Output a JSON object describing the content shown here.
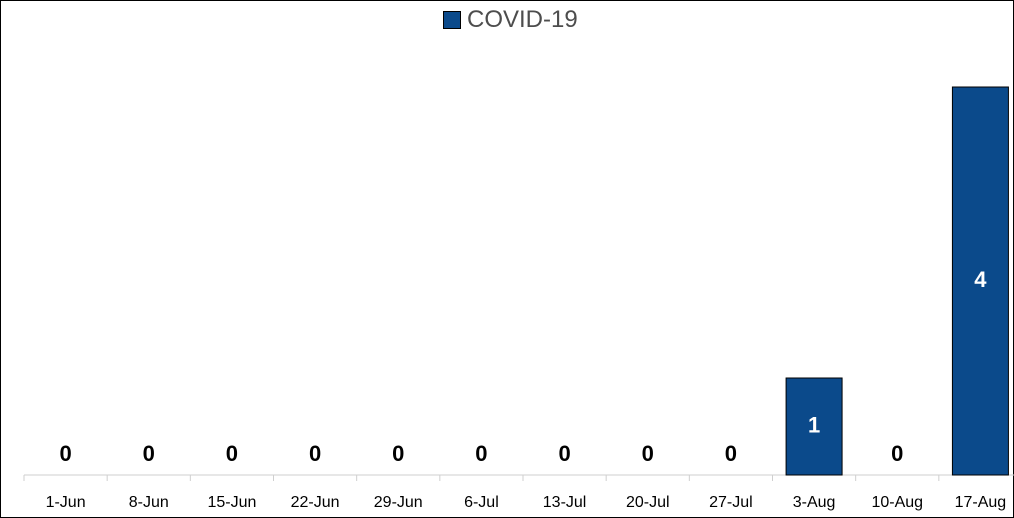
{
  "legend": {
    "label": "COVID-19"
  },
  "colors": {
    "bar": "#0b4a8b",
    "bar_outline": "#000000",
    "axis": "#cfcfcf",
    "tick_text": "#000000",
    "bar_label": "#ffffff",
    "legend_text": "#4d4d4d",
    "border": "#000000"
  },
  "chart_data": {
    "type": "bar",
    "categories": [
      "1-Jun",
      "8-Jun",
      "15-Jun",
      "22-Jun",
      "29-Jun",
      "6-Jul",
      "13-Jul",
      "20-Jul",
      "27-Jul",
      "3-Aug",
      "10-Aug",
      "17-Aug"
    ],
    "series": [
      {
        "name": "COVID-19",
        "values": [
          0,
          0,
          0,
          0,
          0,
          0,
          0,
          0,
          0,
          1,
          0,
          4
        ]
      }
    ],
    "title": "",
    "xlabel": "",
    "ylabel": "",
    "ylim": [
      0,
      4.0
    ],
    "legend_position": "top-center",
    "grid": false
  }
}
